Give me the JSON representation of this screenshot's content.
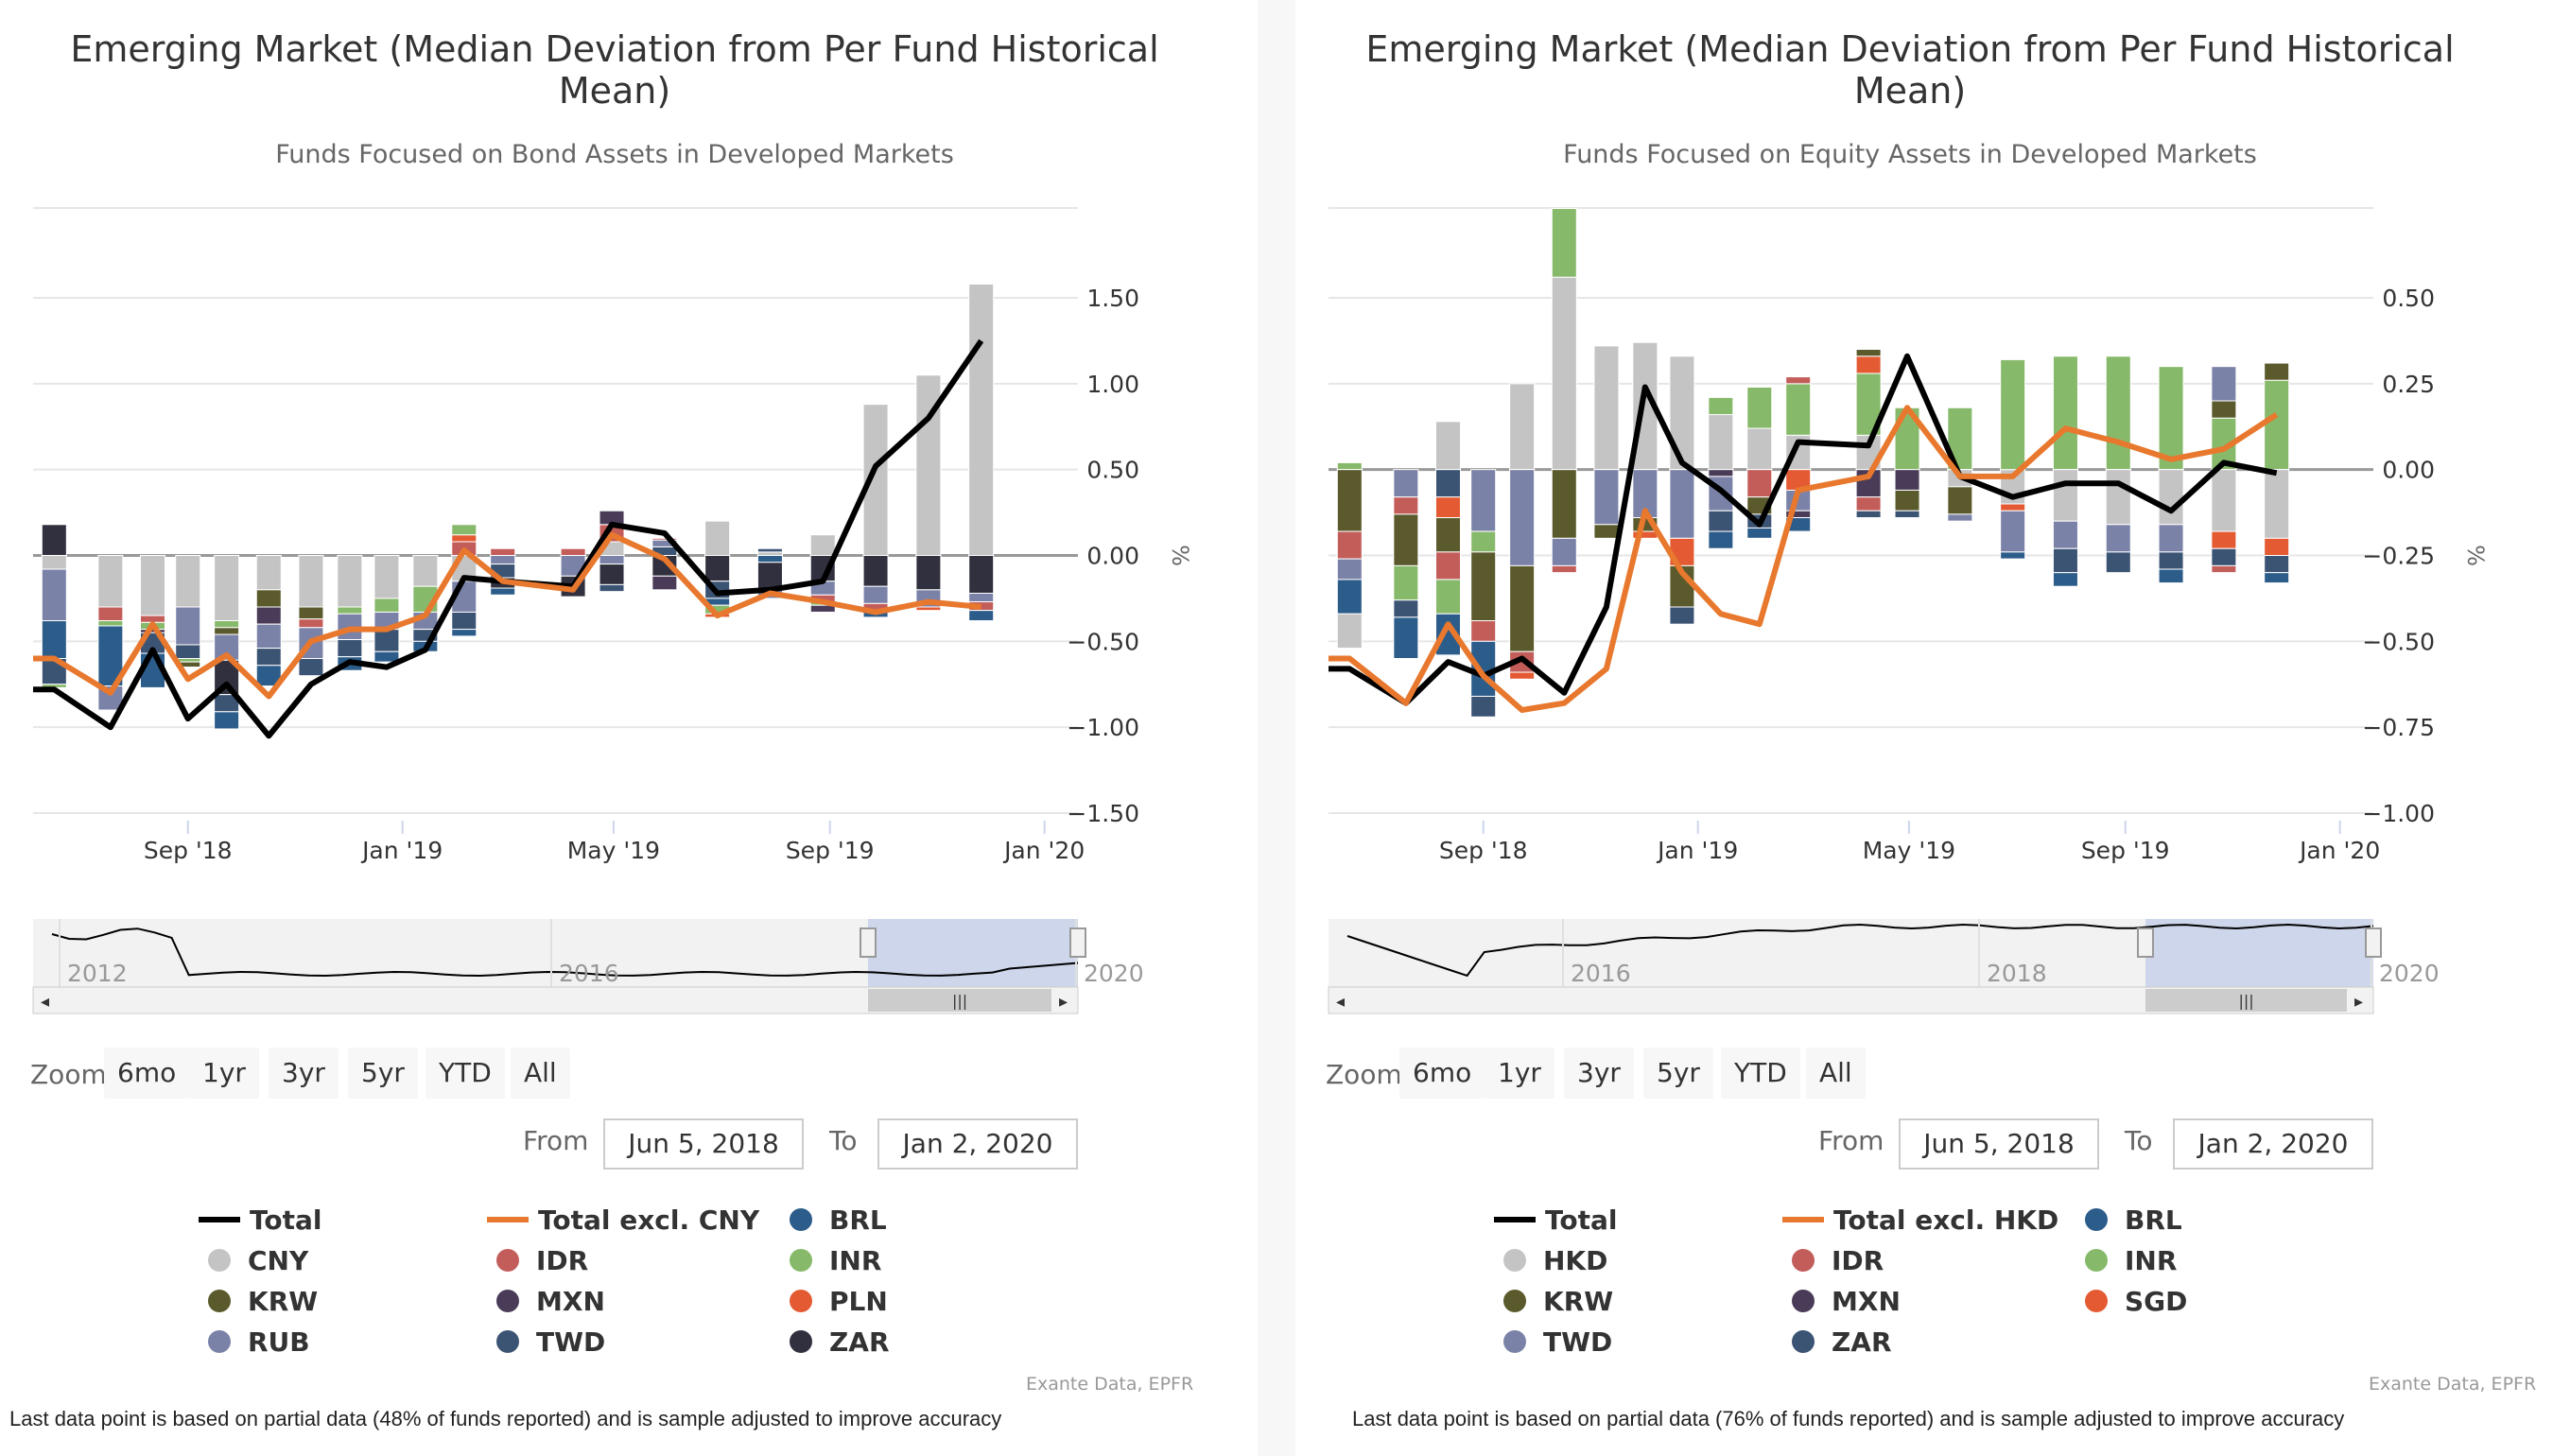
{
  "panels": [
    {
      "title": "Emerging Market (Median Deviation from Per Fund Historical Mean)",
      "subtitle": "Funds Focused on Bond Assets in Developed Markets",
      "ylabel": "%",
      "zoom_label": "Zoom",
      "zoom_buttons": [
        "6mo",
        "1yr",
        "3yr",
        "5yr",
        "YTD",
        "All"
      ],
      "from_label": "From",
      "from_value": "Jun 5, 2018",
      "to_label": "To",
      "to_value": "Jan 2, 2020",
      "navigator_labels": [
        "2012",
        "2016",
        "2020"
      ],
      "credit": "Exante Data, EPFR",
      "footnote": "Last data point is based on partial data (48% of funds reported) and is sample adjusted to improve accuracy",
      "legend": [
        {
          "label": "Total",
          "type": "line",
          "color": "#000000"
        },
        {
          "label": "Total excl. CNY",
          "type": "line",
          "color": "#e8782d"
        },
        {
          "label": "BRL",
          "type": "dot",
          "color": "#2c5c8a"
        },
        {
          "label": "CNY",
          "type": "dot",
          "color": "#c4c4c4"
        },
        {
          "label": "IDR",
          "type": "dot",
          "color": "#c35d5a"
        },
        {
          "label": "INR",
          "type": "dot",
          "color": "#87b96a"
        },
        {
          "label": "KRW",
          "type": "dot",
          "color": "#5a5a2c"
        },
        {
          "label": "MXN",
          "type": "dot",
          "color": "#4a3c58"
        },
        {
          "label": "PLN",
          "type": "dot",
          "color": "#e45a33"
        },
        {
          "label": "RUB",
          "type": "dot",
          "color": "#7b82a8"
        },
        {
          "label": "TWD",
          "type": "dot",
          "color": "#3c5474"
        },
        {
          "label": "ZAR",
          "type": "dot",
          "color": "#30303e"
        }
      ]
    },
    {
      "title": "Emerging Market (Median Deviation from Per Fund Historical Mean)",
      "subtitle": "Funds Focused on Equity Assets in Developed Markets",
      "ylabel": "%",
      "zoom_label": "Zoom",
      "zoom_buttons": [
        "6mo",
        "1yr",
        "3yr",
        "5yr",
        "YTD",
        "All"
      ],
      "from_label": "From",
      "from_value": "Jun 5, 2018",
      "to_label": "To",
      "to_value": "Jan 2, 2020",
      "navigator_labels": [
        "2016",
        "2018",
        "2020"
      ],
      "credit": "Exante Data, EPFR",
      "footnote": "Last data point is based on partial data (76% of funds reported) and is sample adjusted to improve accuracy",
      "legend": [
        {
          "label": "Total",
          "type": "line",
          "color": "#000000"
        },
        {
          "label": "Total excl. HKD",
          "type": "line",
          "color": "#e8782d"
        },
        {
          "label": "BRL",
          "type": "dot",
          "color": "#2c5c8a"
        },
        {
          "label": "HKD",
          "type": "dot",
          "color": "#c4c4c4"
        },
        {
          "label": "IDR",
          "type": "dot",
          "color": "#c35d5a"
        },
        {
          "label": "INR",
          "type": "dot",
          "color": "#87b96a"
        },
        {
          "label": "KRW",
          "type": "dot",
          "color": "#5a5a2c"
        },
        {
          "label": "MXN",
          "type": "dot",
          "color": "#4a3c58"
        },
        {
          "label": "SGD",
          "type": "dot",
          "color": "#e45a33"
        },
        {
          "label": "TWD",
          "type": "dot",
          "color": "#7b82a8"
        },
        {
          "label": "ZAR",
          "type": "dot",
          "color": "#3c5474"
        }
      ]
    }
  ],
  "chart_data": [
    {
      "type": "bar",
      "stacked": true,
      "title": "Emerging Market (Median Deviation from Per Fund Historical Mean)",
      "subtitle": "Funds Focused on Bond Assets in Developed Markets",
      "ylabel": "%",
      "ylim": [
        -1.5,
        1.5
      ],
      "yticks": [
        -1.5,
        -1.0,
        -0.5,
        0.0,
        0.5,
        1.0,
        1.5
      ],
      "ytick_labels": [
        "−1.50",
        "−1.00",
        "−0.50",
        "0.00",
        "0.50",
        "1.00",
        "1.50"
      ],
      "xlim": [
        "2018-06-05",
        "2020-01-20"
      ],
      "xticks": [
        "2018-09-01",
        "2019-01-01",
        "2019-05-01",
        "2019-09-01",
        "2020-01-01"
      ],
      "xtick_labels": [
        "Sep '18",
        "Jan '19",
        "May '19",
        "Sep '19",
        "Jan '20"
      ],
      "x": [
        "2018-06-17",
        "2018-07-19",
        "2018-08-12",
        "2018-09-01",
        "2018-09-23",
        "2018-10-17",
        "2018-11-10",
        "2018-12-02",
        "2018-12-23",
        "2019-01-14",
        "2019-02-05",
        "2019-02-27",
        "2019-04-08",
        "2019-04-30",
        "2019-05-30",
        "2019-06-29",
        "2019-07-29",
        "2019-08-28",
        "2019-09-27",
        "2019-10-27",
        "2019-11-26",
        "2019-12-26",
        "2020-01-02"
      ],
      "series": [
        {
          "name": "Total",
          "type": "line",
          "color": "#000000",
          "values": [
            -0.78,
            -1.0,
            -0.55,
            -0.95,
            -0.75,
            -1.05,
            -0.75,
            -0.62,
            -0.65,
            -0.55,
            -0.13,
            -0.15,
            -0.18,
            0.18,
            0.13,
            -0.22,
            -0.2,
            -0.15,
            0.52,
            0.8,
            1.25,
            null,
            null
          ]
        },
        {
          "name": "Total excl. CNY",
          "type": "line",
          "color": "#e8782d",
          "values": [
            -0.6,
            -0.8,
            -0.4,
            -0.72,
            -0.58,
            -0.82,
            -0.5,
            -0.43,
            -0.43,
            -0.35,
            0.03,
            -0.15,
            -0.2,
            0.12,
            -0.02,
            -0.35,
            -0.22,
            -0.27,
            -0.33,
            -0.27,
            -0.3,
            null,
            null
          ]
        }
      ],
      "stack_order": [
        "CNY",
        "BRL",
        "IDR",
        "INR",
        "KRW",
        "MXN",
        "PLN",
        "RUB",
        "TWD",
        "ZAR"
      ],
      "stacks": [
        {
          "CNY": -0.08,
          "RUB": -0.3,
          "BRL": -0.22,
          "TWD": -0.15,
          "ZAR": 0.18,
          "INR": -0.02
        },
        {
          "CNY": -0.3,
          "IDR": -0.08,
          "INR": -0.03,
          "BRL": -0.35,
          "RUB": -0.14,
          "TWD": 0.0
        },
        {
          "CNY": -0.35,
          "IDR": -0.04,
          "INR": -0.04,
          "MXN": -0.02,
          "TWD": -0.12,
          "BRL": -0.2
        },
        {
          "CNY": -0.3,
          "RUB": -0.22,
          "TWD": -0.08,
          "INR": -0.02,
          "KRW": -0.03
        },
        {
          "CNY": -0.38,
          "INR": -0.04,
          "KRW": -0.04,
          "RUB": -0.15,
          "ZAR": -0.2,
          "TWD": -0.1,
          "BRL": -0.1
        },
        {
          "CNY": -0.2,
          "KRW": -0.1,
          "MXN": -0.1,
          "RUB": -0.14,
          "TWD": -0.1,
          "BRL": -0.12
        },
        {
          "CNY": -0.3,
          "KRW": -0.07,
          "IDR": -0.05,
          "RUB": -0.18,
          "TWD": -0.1
        },
        {
          "CNY": -0.3,
          "INR": -0.04,
          "RUB": -0.15,
          "TWD": -0.1,
          "BRL": -0.08
        },
        {
          "CNY": -0.25,
          "INR": -0.08,
          "RUB": -0.1,
          "TWD": -0.13,
          "BRL": -0.06
        },
        {
          "CNY": -0.18,
          "INR": -0.15,
          "RUB": -0.1,
          "TWD": -0.07,
          "BRL": -0.06
        },
        {
          "CNY": -0.15,
          "IDR": 0.08,
          "PLN": 0.04,
          "INR": 0.06,
          "RUB": -0.18,
          "TWD": -0.1,
          "BRL": -0.04
        },
        {
          "IDR": 0.04,
          "RUB": -0.05,
          "TWD": -0.08,
          "ZAR": -0.06,
          "BRL": -0.04
        },
        {
          "IDR": 0.04,
          "RUB": -0.12,
          "ZAR": -0.12
        },
        {
          "CNY": 0.08,
          "IDR": 0.1,
          "MXN": 0.08,
          "RUB": -0.05,
          "ZAR": -0.12,
          "TWD": -0.04
        },
        {
          "TWD": 0.05,
          "RUB": 0.04,
          "ZAR": -0.12,
          "MXN": -0.08,
          "IDR": 0.01
        },
        {
          "CNY": 0.2,
          "ZAR": -0.15,
          "TWD": -0.1,
          "BRL": -0.04,
          "INR": -0.05,
          "PLN": -0.02
        },
        {
          "CNY": 0.02,
          "TWD": 0.02,
          "BRL": -0.04,
          "ZAR": -0.15,
          "RUB": -0.06
        },
        {
          "CNY": 0.12,
          "ZAR": -0.15,
          "RUB": -0.08,
          "IDR": -0.04,
          "INR": -0.02,
          "MXN": -0.04
        },
        {
          "CNY": 0.88,
          "ZAR": -0.18,
          "RUB": -0.1,
          "IDR": -0.04,
          "BRL": -0.04
        },
        {
          "CNY": 1.05,
          "ZAR": -0.2,
          "RUB": -0.1,
          "PLN": -0.02
        },
        {
          "CNY": 1.58,
          "ZAR": -0.22,
          "RUB": -0.05,
          "IDR": -0.05,
          "BRL": -0.06
        },
        {},
        {}
      ]
    },
    {
      "type": "bar",
      "stacked": true,
      "title": "Emerging Market (Median Deviation from Per Fund Historical Mean)",
      "subtitle": "Funds Focused on Equity Assets in Developed Markets",
      "ylabel": "%",
      "ylim": [
        -1.0,
        0.5
      ],
      "yticks": [
        -1.0,
        -0.75,
        -0.5,
        -0.25,
        0.0,
        0.25,
        0.5
      ],
      "ytick_labels": [
        "−1.00",
        "−0.75",
        "−0.50",
        "−0.25",
        "0.00",
        "0.25",
        "0.50"
      ],
      "xlim": [
        "2018-06-05",
        "2020-01-20"
      ],
      "xticks": [
        "2018-09-01",
        "2019-01-01",
        "2019-05-01",
        "2019-09-01",
        "2020-01-01"
      ],
      "xtick_labels": [
        "Sep '18",
        "Jan '19",
        "May '19",
        "Sep '19",
        "Jan '20"
      ],
      "x": [
        "2018-06-17",
        "2018-07-19",
        "2018-08-12",
        "2018-09-01",
        "2018-09-23",
        "2018-10-17",
        "2018-11-10",
        "2018-12-02",
        "2018-12-23",
        "2019-01-14",
        "2019-02-05",
        "2019-02-27",
        "2019-04-08",
        "2019-04-30",
        "2019-05-30",
        "2019-06-29",
        "2019-07-29",
        "2019-08-28",
        "2019-09-27",
        "2019-10-27",
        "2019-11-26",
        "2019-12-26",
        "2020-01-02"
      ],
      "series": [
        {
          "name": "Total",
          "type": "line",
          "color": "#000000",
          "values": [
            -0.58,
            -0.68,
            -0.56,
            -0.6,
            -0.55,
            -0.65,
            -0.4,
            0.24,
            0.02,
            -0.06,
            -0.16,
            0.08,
            0.07,
            0.33,
            -0.02,
            -0.08,
            -0.04,
            -0.04,
            -0.12,
            0.02,
            -0.01,
            null,
            null
          ]
        },
        {
          "name": "Total excl. HKD",
          "type": "line",
          "color": "#e8782d",
          "values": [
            -0.55,
            -0.68,
            -0.45,
            -0.6,
            -0.7,
            -0.68,
            -0.58,
            -0.12,
            -0.3,
            -0.42,
            -0.45,
            -0.06,
            -0.02,
            0.18,
            -0.02,
            -0.02,
            0.12,
            0.08,
            0.03,
            0.06,
            0.16,
            null,
            null
          ]
        }
      ],
      "stack_order": [
        "HKD",
        "BRL",
        "IDR",
        "INR",
        "KRW",
        "MXN",
        "SGD",
        "TWD",
        "ZAR"
      ],
      "stacks": [
        {
          "INR": 0.02,
          "KRW": -0.18,
          "IDR": -0.08,
          "TWD": -0.06,
          "BRL": -0.1,
          "HKD": -0.1
        },
        {
          "TWD": -0.08,
          "IDR": -0.05,
          "KRW": -0.15,
          "INR": -0.1,
          "ZAR": -0.05,
          "BRL": -0.12
        },
        {
          "HKD": 0.14,
          "ZAR": -0.08,
          "SGD": -0.06,
          "KRW": -0.1,
          "IDR": -0.08,
          "INR": -0.1,
          "BRL": -0.12
        },
        {
          "TWD": -0.18,
          "INR": -0.06,
          "KRW": -0.2,
          "IDR": -0.06,
          "BRL": -0.16,
          "ZAR": -0.06
        },
        {
          "HKD": 0.25,
          "TWD": -0.28,
          "KRW": -0.25,
          "IDR": -0.06,
          "SGD": -0.02
        },
        {
          "HKD": 0.56,
          "INR": 0.2,
          "KRW": -0.2,
          "TWD": -0.08,
          "IDR": -0.02
        },
        {
          "HKD": 0.36,
          "TWD": -0.16,
          "KRW": -0.04
        },
        {
          "HKD": 0.37,
          "TWD": -0.14,
          "KRW": -0.04,
          "SGD": -0.02
        },
        {
          "HKD": 0.33,
          "TWD": -0.2,
          "SGD": -0.08,
          "KRW": -0.12,
          "ZAR": -0.05
        },
        {
          "HKD": 0.16,
          "INR": 0.05,
          "MXN": -0.02,
          "TWD": -0.1,
          "ZAR": -0.06,
          "BRL": -0.05
        },
        {
          "HKD": 0.12,
          "INR": 0.12,
          "IDR": -0.08,
          "KRW": -0.05,
          "ZAR": -0.04,
          "BRL": -0.03
        },
        {
          "HKD": 0.1,
          "INR": 0.15,
          "IDR": 0.02,
          "SGD": -0.06,
          "TWD": -0.06,
          "MXN": -0.02,
          "BRL": -0.04
        },
        {
          "HKD": 0.1,
          "INR": 0.18,
          "SGD": 0.05,
          "KRW": 0.02,
          "MXN": -0.08,
          "IDR": -0.04,
          "ZAR": -0.02
        },
        {
          "INR": 0.18,
          "MXN": -0.06,
          "KRW": -0.06,
          "ZAR": -0.02
        },
        {
          "INR": 0.18,
          "HKD": -0.05,
          "KRW": -0.08,
          "TWD": -0.02
        },
        {
          "HKD": -0.1,
          "INR": 0.32,
          "SGD": -0.02,
          "TWD": -0.12,
          "BRL": -0.02
        },
        {
          "INR": 0.33,
          "HKD": -0.15,
          "TWD": -0.08,
          "ZAR": -0.07,
          "BRL": -0.04
        },
        {
          "INR": 0.33,
          "HKD": -0.16,
          "TWD": -0.08,
          "ZAR": -0.06
        },
        {
          "INR": 0.3,
          "HKD": -0.16,
          "TWD": -0.08,
          "ZAR": -0.05,
          "BRL": -0.04
        },
        {
          "INR": 0.15,
          "KRW": 0.05,
          "TWD": 0.1,
          "HKD": -0.18,
          "SGD": -0.05,
          "ZAR": -0.05,
          "IDR": -0.02
        },
        {
          "INR": 0.26,
          "KRW": 0.05,
          "HKD": -0.2,
          "SGD": -0.05,
          "ZAR": -0.05,
          "BRL": -0.03
        },
        {},
        {}
      ]
    }
  ]
}
